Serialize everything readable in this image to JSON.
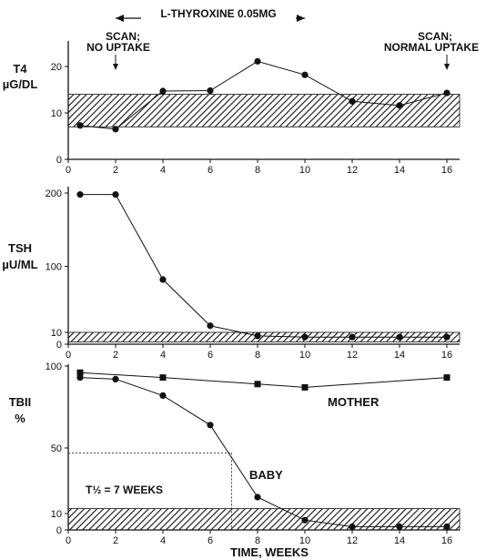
{
  "chart_data": [
    {
      "type": "line",
      "ylabel": [
        "T4",
        "µG/DL"
      ],
      "ylim": [
        0,
        25
      ],
      "xlim": [
        0,
        17
      ],
      "x_ticks": [
        "0",
        "2",
        "4",
        "6",
        "8",
        "10",
        "12",
        "14",
        "16"
      ],
      "y_ticks": [
        "0",
        "10",
        "20"
      ],
      "normal_range": [
        7,
        14
      ],
      "series": [
        {
          "marker": "circle",
          "x": [
            0.5,
            2,
            4,
            6,
            8,
            10,
            12,
            14,
            16
          ],
          "y": [
            7.3,
            6.5,
            14.7,
            14.8,
            21.1,
            18.2,
            12.5,
            11.6,
            14.3
          ]
        }
      ],
      "annotations": {
        "drug_bar": "L-THYROXINE 0.05MG",
        "drug_bar_x": [
          2,
          10
        ],
        "scan_left": [
          "SCAN;",
          "NO UPTAKE"
        ],
        "scan_left_x": 2,
        "scan_right": [
          "SCAN;",
          "NORMAL UPTAKE"
        ],
        "scan_right_x": 16
      }
    },
    {
      "type": "line",
      "ylabel": [
        "TSH",
        "µU/ML"
      ],
      "ylim": [
        0,
        200
      ],
      "xlim": [
        0,
        17
      ],
      "x_ticks": [
        "0",
        "2",
        "4",
        "6",
        "8",
        "10",
        "12",
        "14",
        "16"
      ],
      "y_ticks": [
        "0",
        "10",
        "100",
        "200"
      ],
      "normal_range": [
        2,
        10
      ],
      "series": [
        {
          "marker": "circle",
          "x": [
            0.5,
            2,
            4,
            6,
            8,
            10,
            12,
            14,
            16
          ],
          "y": [
            198,
            198,
            82,
            19,
            7,
            6,
            6,
            6,
            6
          ]
        }
      ]
    },
    {
      "type": "line",
      "ylabel": [
        "TBII",
        "%"
      ],
      "ylim": [
        0,
        100
      ],
      "xlim": [
        0,
        17
      ],
      "x_ticks": [
        "0",
        "2",
        "4",
        "6",
        "8",
        "10",
        "12",
        "14",
        "16"
      ],
      "y_ticks": [
        "0",
        "10",
        "50",
        "100"
      ],
      "xlabel": "TIME, WEEKS",
      "normal_range": [
        0,
        13
      ],
      "series": [
        {
          "name": "MOTHER",
          "marker": "square",
          "x": [
            0.5,
            4,
            8,
            10,
            16
          ],
          "y": [
            96,
            93,
            89,
            87,
            93
          ]
        },
        {
          "name": "BABY",
          "marker": "circle",
          "x": [
            0.5,
            2,
            4,
            6,
            8,
            10,
            12,
            14,
            16
          ],
          "y": [
            93,
            92,
            82,
            64,
            20,
            6,
            2,
            2,
            2
          ]
        }
      ],
      "annotations": {
        "half_life": "T½ = 7 WEEKS",
        "half_life_x": 6.9,
        "half_life_y": 47
      }
    }
  ]
}
